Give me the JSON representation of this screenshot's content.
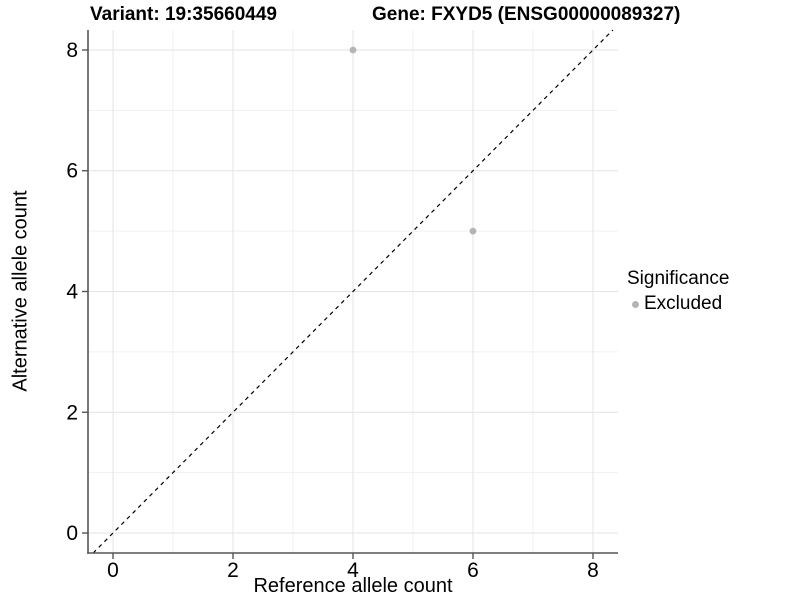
{
  "header": {
    "variant_title": "Variant: 19:35660449",
    "gene_title": "Gene: FXYD5 (ENSG00000089327)"
  },
  "chart_data": {
    "type": "scatter",
    "xlabel": "Reference allele count",
    "ylabel": "Alternative allele count",
    "xlim": [
      -0.417,
      8.417
    ],
    "ylim": [
      -0.331,
      8.331
    ],
    "x_ticks": [
      0,
      2,
      4,
      6,
      8
    ],
    "y_ticks": [
      0,
      2,
      4,
      6,
      8
    ],
    "grid": "major and minor gridlines, light gray on white",
    "identity_line": {
      "slope": 1,
      "intercept": 0,
      "style": "dashed",
      "color": "#000000"
    },
    "series": [
      {
        "name": "Excluded",
        "color": "#b4b4b4",
        "points": [
          [
            4,
            8
          ],
          [
            6,
            5
          ]
        ]
      }
    ],
    "legend": {
      "title": "Significance",
      "position": "right",
      "items": [
        {
          "label": "Excluded",
          "color": "#b4b4b4"
        }
      ]
    }
  },
  "colors": {
    "background": "#ffffff",
    "axis_line": "#555555",
    "grid_major": "#e3e3e3",
    "grid_minor": "#f1f1f1",
    "tick_label": "#000000"
  }
}
